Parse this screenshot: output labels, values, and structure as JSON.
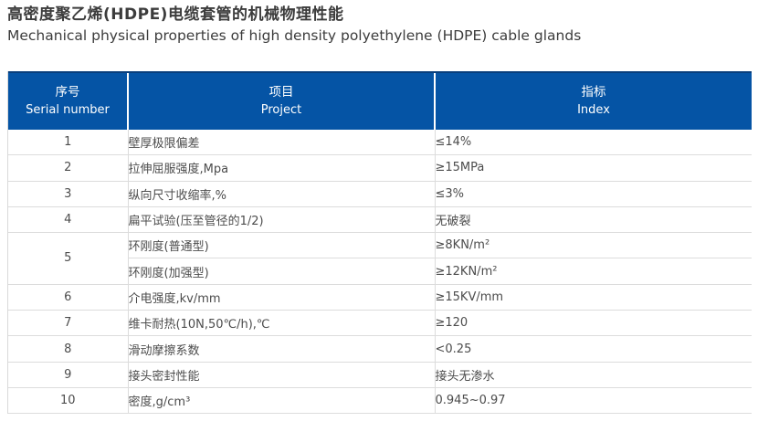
{
  "page": {
    "title_zh": "高密度聚乙烯(HDPE)电缆套管的机械物理性能",
    "title_en": "Mechanical physical properties of high density polyethylene (HDPE) cable glands"
  },
  "colors": {
    "header_bg": "#0554a5",
    "header_text": "#ffffff",
    "row_alt_bg": "#ededed",
    "grid_line": "#dcdcdc",
    "body_text": "#4c4c4c"
  },
  "table": {
    "columns": [
      {
        "zh": "序号",
        "en": "Serial number"
      },
      {
        "zh": "项目",
        "en": "Project"
      },
      {
        "zh": "指标",
        "en": "Index"
      }
    ],
    "rows": [
      {
        "serial": "1",
        "rowspan": 1,
        "shaded_serial": true,
        "project": "壁厚极限偏差",
        "index": "≤14%",
        "shaded": true
      },
      {
        "serial": "2",
        "rowspan": 1,
        "shaded_serial": false,
        "project": "拉伸屈服强度,Mpa",
        "index": "≥15MPa",
        "shaded": false
      },
      {
        "serial": "3",
        "rowspan": 1,
        "shaded_serial": true,
        "project": "纵向尺寸收缩率,%",
        "index": "≤3%",
        "shaded": true
      },
      {
        "serial": "4",
        "rowspan": 1,
        "shaded_serial": false,
        "project": "扁平试验(压至管径的1/2)",
        "index": "无破裂",
        "shaded": false
      },
      {
        "serial": "5",
        "rowspan": 2,
        "shaded_serial": true,
        "project": "环刚度(普通型)",
        "index": "≥8KN/m²",
        "shaded": true
      },
      {
        "serial": null,
        "project": "环刚度(加强型)",
        "index": "≥12KN/m²",
        "shaded": false
      },
      {
        "serial": "6",
        "rowspan": 1,
        "shaded_serial": false,
        "project": "介电强度,kv/mm",
        "index": "≥15KV/mm",
        "shaded": false
      },
      {
        "serial": "7",
        "rowspan": 1,
        "shaded_serial": true,
        "project": "维卡耐热(10N,50℃/h),℃",
        "index": "≥120",
        "shaded": true
      },
      {
        "serial": "8",
        "rowspan": 1,
        "shaded_serial": false,
        "project": "滑动摩擦系数",
        "index": "<0.25",
        "shaded": false
      },
      {
        "serial": "9",
        "rowspan": 1,
        "shaded_serial": true,
        "project": "接头密封性能",
        "index": "接头无渗水",
        "shaded": true
      },
      {
        "serial": "10",
        "rowspan": 1,
        "shaded_serial": false,
        "project": "密度,g/cm³",
        "index": "0.945~0.97",
        "shaded": false
      }
    ]
  }
}
